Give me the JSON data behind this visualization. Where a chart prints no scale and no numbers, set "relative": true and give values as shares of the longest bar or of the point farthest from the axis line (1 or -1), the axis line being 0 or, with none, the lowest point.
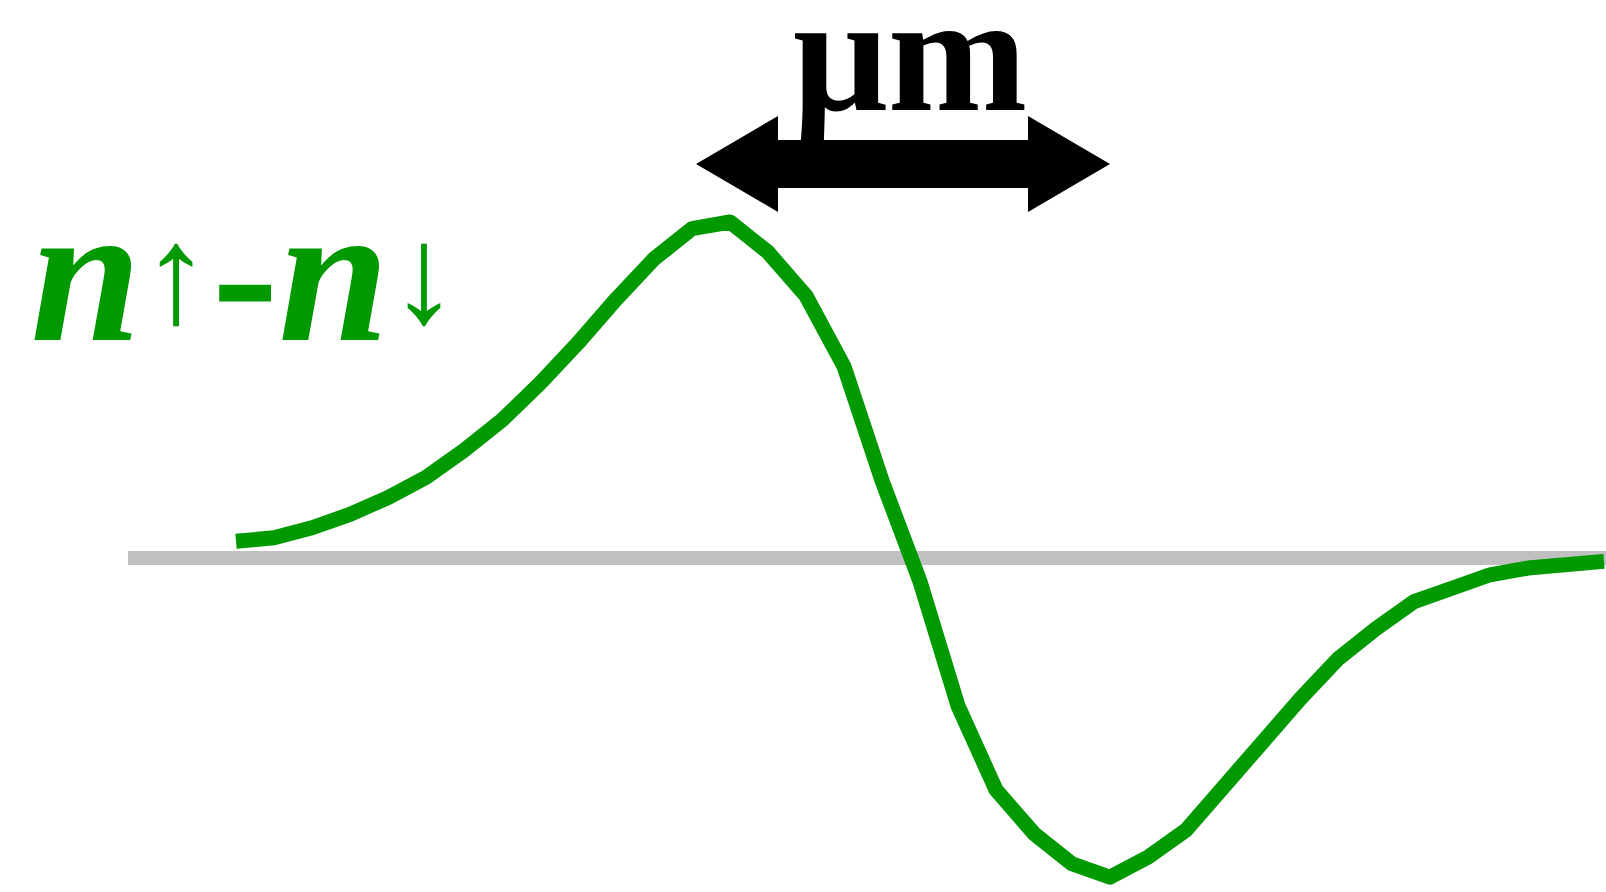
{
  "chart_data": {
    "type": "line",
    "relative": true,
    "ylabel": "*n*$^{↑}$-*n*$^{↓}$",
    "annotations": [
      "μm"
    ],
    "categories": [
      null,
      null,
      null,
      null,
      null,
      null,
      null,
      null,
      null,
      null,
      null,
      null,
      null,
      null,
      null,
      null,
      null,
      null,
      null,
      null,
      null,
      null,
      null,
      null,
      null,
      null,
      null,
      null,
      null,
      null,
      null,
      null,
      null,
      null,
      null,
      null,
      null
    ],
    "values": [
      0.05,
      0.06,
      0.09,
      0.13,
      0.18,
      0.24,
      0.32,
      0.41,
      0.52,
      0.64,
      0.77,
      0.89,
      0.98,
      1,
      0.91,
      0.78,
      0.57,
      0.23,
      -0.07,
      -0.44,
      -0.69,
      -0.82,
      -0.91,
      -0.95,
      -0.89,
      -0.81,
      -0.68,
      -0.55,
      -0.42,
      -0.3,
      -0.21,
      -0.13,
      -0.09,
      -0.05,
      -0.03,
      -0.02,
      -0.01
    ],
    "color": "#009900",
    "marker": "none"
  }
}
